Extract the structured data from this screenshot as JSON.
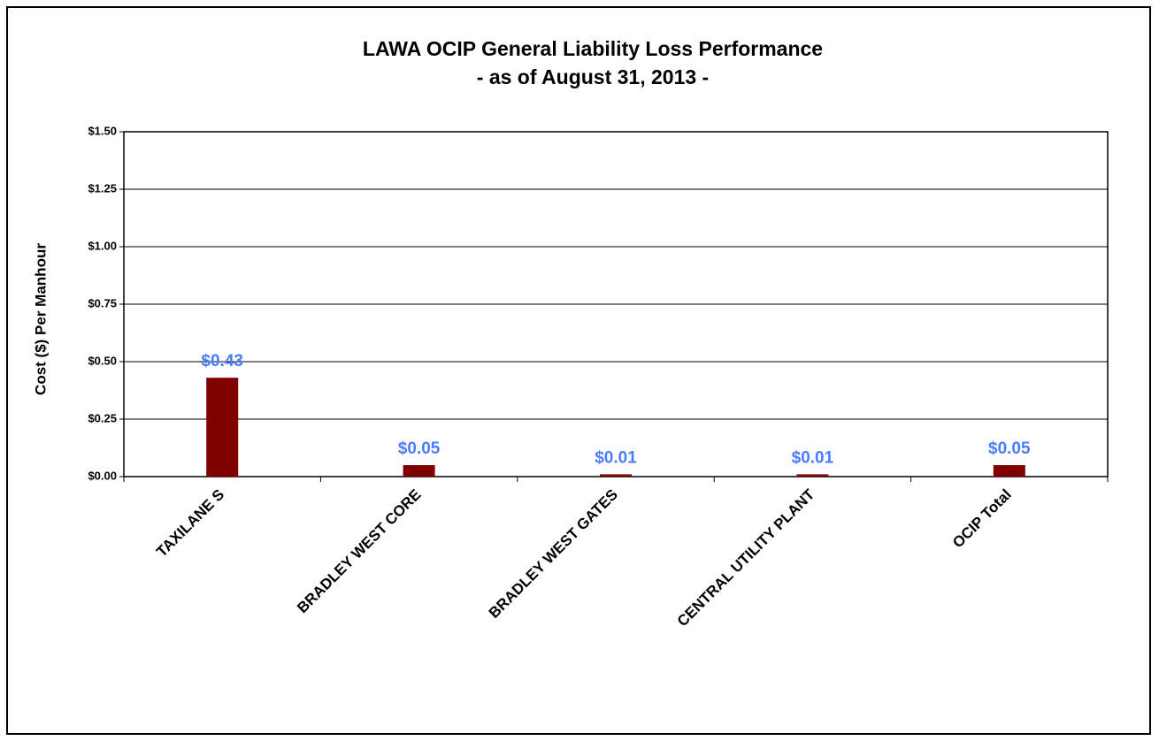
{
  "chart_data": {
    "type": "bar",
    "title": "LAWA OCIP General Liability Loss Performance",
    "subtitle": "- as of August 31, 2013 -",
    "y_label": "Cost ($) Per Manhour",
    "categories": [
      "TAXILANE S",
      "BRADLEY WEST CORE",
      "BRADLEY WEST GATES",
      "CENTRAL UTILITY PLANT",
      "OCIP Total"
    ],
    "values": [
      0.43,
      0.05,
      0.01,
      0.01,
      0.05
    ],
    "value_labels": [
      "$0.43",
      "$0.05",
      "$0.01",
      "$0.01",
      "$0.05"
    ],
    "color": "#800000",
    "label_color": "#4a7cff",
    "ylim": [
      0,
      1.5
    ],
    "yticks": [
      {
        "value": 0,
        "label": "$0.00"
      },
      {
        "value": 0.25,
        "label": "$0.25"
      },
      {
        "value": 0.5,
        "label": "$0.50"
      },
      {
        "value": 0.75,
        "label": "$0.75"
      },
      {
        "value": 1,
        "label": "$1.00"
      },
      {
        "value": 1.25,
        "label": "$1.25"
      },
      {
        "value": 1.5,
        "label": "$1.50"
      }
    ],
    "grid": true
  }
}
